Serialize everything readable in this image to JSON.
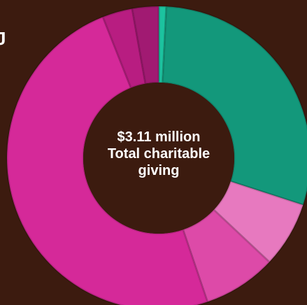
{
  "edge_text": "J",
  "chart_data": {
    "type": "pie",
    "center": {
      "total": "$3.11 million",
      "label": "Total charitable giving"
    },
    "slices": [
      {
        "value": 0.8,
        "color": "#1cc39f"
      },
      {
        "value": 29.2,
        "color": "#13987b"
      },
      {
        "value": 7.0,
        "color": "#e779bf"
      },
      {
        "value": 7.8,
        "color": "#dd4aa8"
      },
      {
        "value": 49.2,
        "color": "#d52999"
      },
      {
        "value": 3.2,
        "color": "#b81d81"
      },
      {
        "value": 2.8,
        "color": "#a11a72"
      }
    ]
  }
}
